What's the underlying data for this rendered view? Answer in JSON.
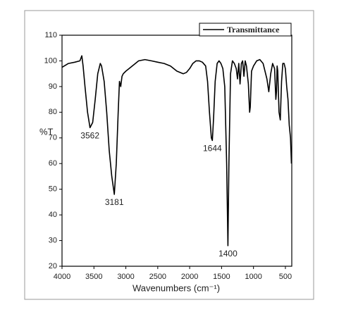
{
  "chart_data": {
    "type": "line",
    "xlabel": "Wavenumbers (cm⁻¹)",
    "ylabel": "%T",
    "xlim": [
      4000,
      400
    ],
    "ylim": [
      20,
      110
    ],
    "xticks": [
      4000,
      3500,
      3000,
      2500,
      2000,
      1500,
      1000,
      500
    ],
    "yticks": [
      20,
      30,
      40,
      50,
      60,
      70,
      80,
      90,
      100,
      110
    ],
    "legend": "top-right",
    "series": [
      {
        "name": "Transmittance",
        "color": "#000000",
        "x": [
          4000,
          3900,
          3800,
          3720,
          3690,
          3670,
          3640,
          3600,
          3562,
          3520,
          3480,
          3440,
          3400,
          3380,
          3340,
          3300,
          3260,
          3220,
          3181,
          3150,
          3120,
          3100,
          3080,
          3060,
          3040,
          3000,
          2950,
          2900,
          2800,
          2700,
          2600,
          2500,
          2400,
          2300,
          2200,
          2100,
          2050,
          2000,
          1950,
          1900,
          1850,
          1800,
          1750,
          1720,
          1690,
          1660,
          1644,
          1625,
          1600,
          1570,
          1540,
          1510,
          1480,
          1450,
          1420,
          1400,
          1385,
          1360,
          1330,
          1300,
          1270,
          1250,
          1230,
          1210,
          1190,
          1170,
          1150,
          1130,
          1110,
          1080,
          1060,
          1050,
          1030,
          1000,
          950,
          900,
          850,
          820,
          790,
          760,
          730,
          700,
          670,
          650,
          640,
          630,
          620,
          600,
          580,
          560,
          540,
          520,
          500,
          480,
          460,
          440,
          420,
          405
        ],
        "values": [
          97.5,
          99,
          99.5,
          100,
          102,
          98,
          90,
          80,
          74,
          76,
          85,
          95,
          99,
          98,
          92,
          80,
          65,
          55,
          48,
          60,
          80,
          92,
          90,
          94,
          95,
          96,
          97,
          98,
          100,
          100.5,
          100,
          99.5,
          99,
          98,
          96,
          95,
          95.5,
          97,
          99,
          100,
          100,
          99.5,
          98,
          92,
          80,
          70,
          69,
          78,
          92,
          99,
          100,
          99,
          97,
          90,
          60,
          28,
          60,
          95,
          100,
          99,
          97,
          93,
          99,
          91,
          99,
          100,
          94,
          100,
          98,
          91,
          80,
          82,
          96,
          98,
          100,
          100.5,
          99,
          96,
          93,
          88,
          95,
          99,
          97,
          85,
          88,
          98,
          96,
          80,
          77,
          92,
          99,
          99,
          97,
          90,
          85,
          75,
          70,
          60
        ]
      }
    ],
    "annotations": [
      {
        "text": "3562",
        "x": 3562,
        "y": 74
      },
      {
        "text": "3181",
        "x": 3181,
        "y": 48
      },
      {
        "text": "1644",
        "x": 1644,
        "y": 69
      },
      {
        "text": "1400",
        "x": 1400,
        "y": 28
      }
    ]
  }
}
